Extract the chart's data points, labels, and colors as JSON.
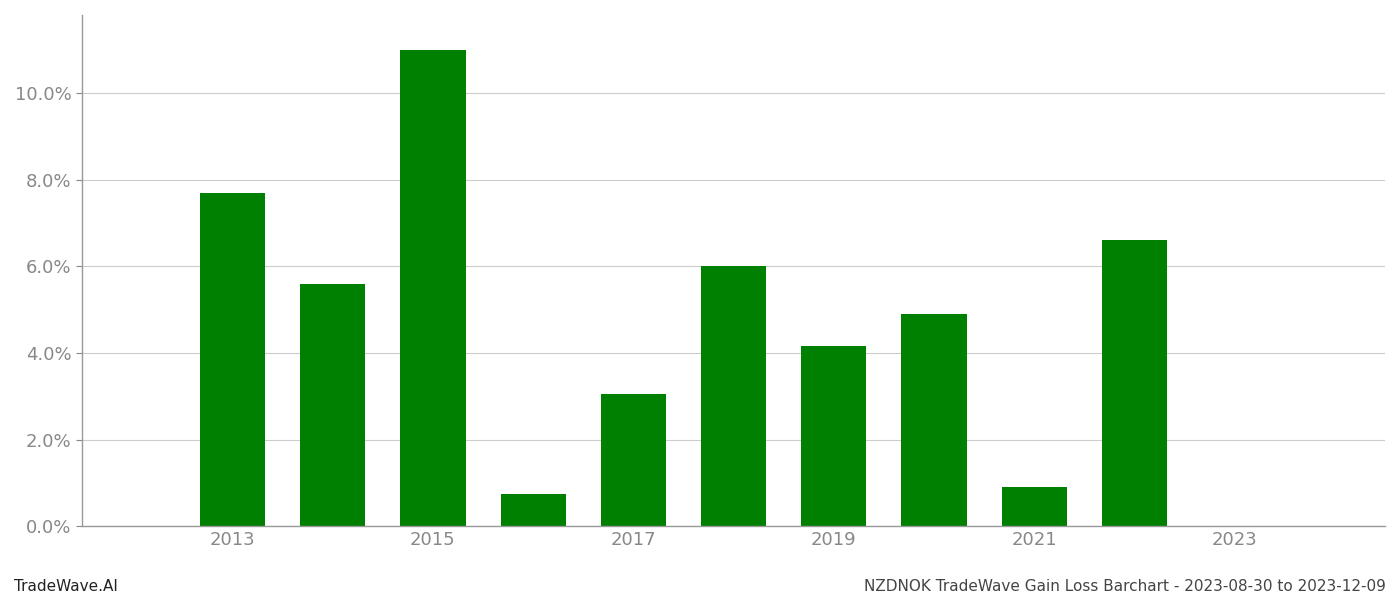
{
  "years": [
    2013,
    2014,
    2015,
    2016,
    2017,
    2018,
    2019,
    2020,
    2021,
    2022,
    2023
  ],
  "values": [
    0.077,
    0.056,
    0.11,
    0.0075,
    0.0305,
    0.06,
    0.0415,
    0.049,
    0.009,
    0.066,
    0.0
  ],
  "bar_color": "#008000",
  "background_color": "#ffffff",
  "ylim": [
    0,
    0.118
  ],
  "yticks": [
    0.0,
    0.02,
    0.04,
    0.06,
    0.08,
    0.1
  ],
  "xticks": [
    2013,
    2015,
    2017,
    2019,
    2021,
    2023
  ],
  "footer_left": "TradeWave.AI",
  "footer_right": "NZDNOK TradeWave Gain Loss Barchart - 2023-08-30 to 2023-12-09",
  "grid_color": "#cccccc",
  "spine_color": "#999999",
  "tick_color": "#888888",
  "footer_fontsize": 11,
  "tick_fontsize": 13,
  "bar_width": 0.65
}
